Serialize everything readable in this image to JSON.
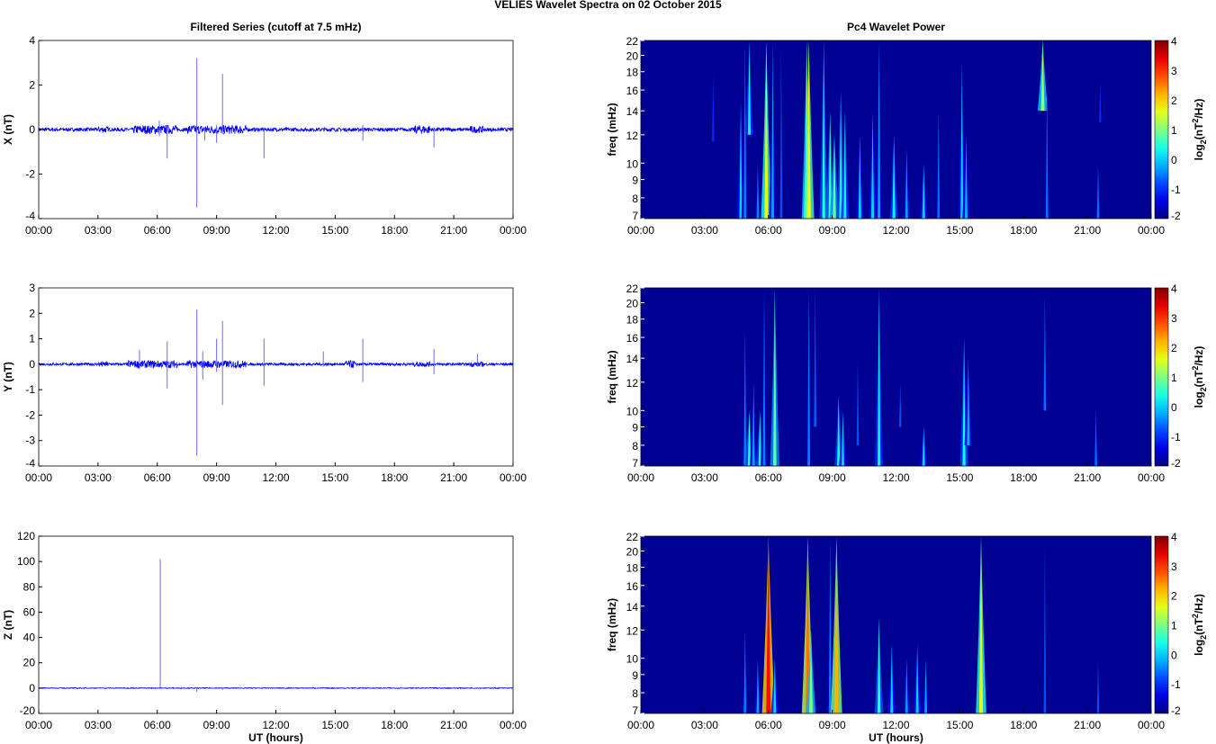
{
  "title": "VELIES Wavelet Spectra on 02 October   2015",
  "chart_data": [
    {
      "type": "line",
      "title": "Filtered Series (cutoff at 7.5 mHz)",
      "xlabel": "",
      "ylabel": "X (nT)",
      "xlim": [
        0,
        24
      ],
      "ylim": [
        -4,
        4
      ],
      "yticks": [
        -4,
        -2,
        0,
        2,
        4
      ],
      "noise_level": 0.08,
      "bursts": [
        [
          3.0,
          3.5,
          0.15
        ],
        [
          4.8,
          7.0,
          0.2
        ],
        [
          7.5,
          10.5,
          0.2
        ],
        [
          19.0,
          19.8,
          0.2
        ],
        [
          21.8,
          22.5,
          0.15
        ]
      ],
      "spikes": [
        [
          6.1,
          0.4,
          -0.3
        ],
        [
          6.5,
          0.1,
          -1.3
        ],
        [
          8.0,
          3.2,
          -3.5
        ],
        [
          8.4,
          0.1,
          -0.5
        ],
        [
          9.0,
          0.2,
          -0.6
        ],
        [
          9.3,
          2.5,
          -0.2
        ],
        [
          11.4,
          0.1,
          -1.3
        ],
        [
          16.4,
          0.2,
          -0.5
        ],
        [
          20.0,
          0.1,
          -0.8
        ]
      ]
    },
    {
      "type": "line",
      "title": "",
      "xlabel": "",
      "ylabel": "Y (nT)",
      "xlim": [
        0,
        24
      ],
      "ylim": [
        -4,
        3
      ],
      "yticks": [
        -4,
        -3,
        -2,
        -1,
        0,
        1,
        2,
        3
      ],
      "noise_level": 0.05,
      "bursts": [
        [
          3.0,
          3.5,
          0.1
        ],
        [
          4.5,
          7.0,
          0.15
        ],
        [
          7.5,
          10.5,
          0.15
        ],
        [
          15.5,
          16.0,
          0.15
        ],
        [
          19.0,
          19.8,
          0.1
        ],
        [
          21.8,
          22.5,
          0.1
        ]
      ],
      "spikes": [
        [
          5.1,
          0.55,
          -0.2
        ],
        [
          6.5,
          0.9,
          -0.95
        ],
        [
          8.0,
          2.15,
          -3.6
        ],
        [
          8.3,
          0.5,
          -0.6
        ],
        [
          9.0,
          1.0,
          -0.3
        ],
        [
          9.3,
          1.7,
          -1.6
        ],
        [
          11.4,
          1.0,
          -0.85
        ],
        [
          14.4,
          0.5,
          -0.1
        ],
        [
          16.4,
          1.0,
          -0.7
        ],
        [
          20.0,
          0.6,
          -0.4
        ],
        [
          22.2,
          0.4,
          -0.1
        ]
      ]
    },
    {
      "type": "line",
      "title": "",
      "xlabel": "UT (hours)",
      "ylabel": "Z (nT)",
      "xlim": [
        0,
        24
      ],
      "ylim": [
        -20,
        120
      ],
      "yticks": [
        -20,
        0,
        20,
        40,
        60,
        80,
        100,
        120
      ],
      "noise_level": 0.3,
      "bursts": [],
      "spikes": [
        [
          6.15,
          102,
          -1
        ],
        [
          8.0,
          0.5,
          -3
        ],
        [
          9.3,
          0.5,
          -1.5
        ],
        [
          16.4,
          1,
          -1
        ]
      ]
    },
    {
      "type": "heatmap",
      "title": "Pc4 Wavelet Power",
      "xlabel": "",
      "ylabel": "freq (mHz)",
      "colorbar_label": "log2(nT^2/Hz)",
      "xlim": [
        0,
        24
      ],
      "ylim": [
        7,
        22
      ],
      "clim": [
        -2,
        4
      ],
      "streaks": [
        [
          3.4,
          11.5,
          18,
          -1
        ],
        [
          4.7,
          7,
          15,
          0
        ],
        [
          4.9,
          7,
          22,
          -0.5
        ],
        [
          5.1,
          12,
          22,
          0.2
        ],
        [
          5.5,
          7,
          10,
          -0.5
        ],
        [
          5.9,
          7,
          22,
          1.6
        ],
        [
          6.2,
          7,
          22,
          -0.3
        ],
        [
          6.6,
          7,
          22,
          -0.8
        ],
        [
          7.8,
          7,
          22,
          1.2
        ],
        [
          7.9,
          7,
          22,
          1.8
        ],
        [
          8.6,
          7,
          22,
          0.4
        ],
        [
          8.9,
          7,
          14,
          0.6
        ],
        [
          9.1,
          7,
          12,
          0.8
        ],
        [
          9.4,
          7,
          16,
          0.3
        ],
        [
          9.6,
          7,
          14,
          0.2
        ],
        [
          10.3,
          7,
          12,
          0
        ],
        [
          10.9,
          7,
          14,
          0
        ],
        [
          11.2,
          7,
          22,
          -0.3
        ],
        [
          11.9,
          7,
          12,
          0.2
        ],
        [
          12.5,
          7,
          11,
          -0.3
        ],
        [
          13.3,
          7,
          10,
          0
        ],
        [
          14.0,
          7,
          14,
          -0.6
        ],
        [
          15.1,
          7,
          19,
          0
        ],
        [
          15.3,
          7,
          12,
          -0.2
        ],
        [
          18.9,
          14,
          22,
          1.2
        ],
        [
          19.1,
          7,
          16,
          -0.6
        ],
        [
          21.5,
          7,
          10,
          -0.6
        ],
        [
          21.6,
          13,
          17,
          -1
        ]
      ]
    },
    {
      "type": "heatmap",
      "title": "",
      "xlabel": "",
      "ylabel": "freq (mHz)",
      "colorbar_label": "log2(nT^2/Hz)",
      "xlim": [
        0,
        24
      ],
      "ylim": [
        7,
        22
      ],
      "clim": [
        -2,
        4
      ],
      "streaks": [
        [
          4.9,
          7,
          17,
          -0.5
        ],
        [
          5.1,
          7,
          10,
          0.5
        ],
        [
          5.3,
          7,
          12,
          -0.3
        ],
        [
          5.6,
          7,
          10,
          0.3
        ],
        [
          5.8,
          7,
          22,
          -0.5
        ],
        [
          6.3,
          7,
          22,
          0.8
        ],
        [
          7.9,
          7,
          22,
          -0.5
        ],
        [
          8.2,
          9,
          22,
          -0.7
        ],
        [
          9.3,
          7,
          11,
          0.3
        ],
        [
          9.5,
          7,
          10,
          0
        ],
        [
          10.2,
          8,
          14,
          -0.8
        ],
        [
          11.2,
          7,
          22,
          0.2
        ],
        [
          12.2,
          9,
          12,
          -0.8
        ],
        [
          13.3,
          7,
          9,
          0
        ],
        [
          15.2,
          7,
          16,
          0.3
        ],
        [
          15.4,
          8,
          14,
          -0.2
        ],
        [
          19.0,
          10,
          21,
          -0.6
        ],
        [
          21.4,
          7,
          10,
          -0.6
        ]
      ]
    },
    {
      "type": "heatmap",
      "title": "",
      "xlabel": "UT (hours)",
      "ylabel": "freq (mHz)",
      "colorbar_label": "log2(nT^2/Hz)",
      "xlim": [
        0,
        24
      ],
      "ylim": [
        7,
        22
      ],
      "clim": [
        -2,
        4
      ],
      "streaks": [
        [
          4.9,
          7,
          12,
          -0.5
        ],
        [
          5.5,
          7,
          10,
          -0.3
        ],
        [
          6.0,
          7,
          22,
          3.2
        ],
        [
          6.3,
          7,
          10,
          0
        ],
        [
          7.85,
          7,
          22,
          2.6
        ],
        [
          8.0,
          7,
          12,
          1
        ],
        [
          8.9,
          7,
          22,
          -0.5
        ],
        [
          9.2,
          7,
          22,
          2.2
        ],
        [
          11.2,
          7,
          13,
          0.5
        ],
        [
          11.8,
          7,
          11,
          0
        ],
        [
          12.5,
          7,
          10,
          -0.3
        ],
        [
          13.0,
          7,
          11,
          0
        ],
        [
          13.4,
          7,
          10,
          -0.3
        ],
        [
          16.0,
          7,
          22,
          1.6
        ],
        [
          19.0,
          7,
          21,
          -0.8
        ],
        [
          21.5,
          7,
          10,
          -0.8
        ]
      ]
    }
  ],
  "xticks": [
    "00:00",
    "03:00",
    "06:00",
    "09:00",
    "12:00",
    "15:00",
    "18:00",
    "21:00",
    "00:00"
  ],
  "freq_ticks": [
    7,
    8,
    9,
    10,
    12,
    14,
    16,
    18,
    20,
    22
  ],
  "colorbar_ticks": [
    -2,
    -1,
    0,
    1,
    2,
    3,
    4
  ],
  "colorbar_label_main": "log",
  "colorbar_label_sub": "2",
  "colorbar_label_rest": "(nT",
  "colorbar_label_sup": "2",
  "colorbar_label_end": "/Hz)"
}
